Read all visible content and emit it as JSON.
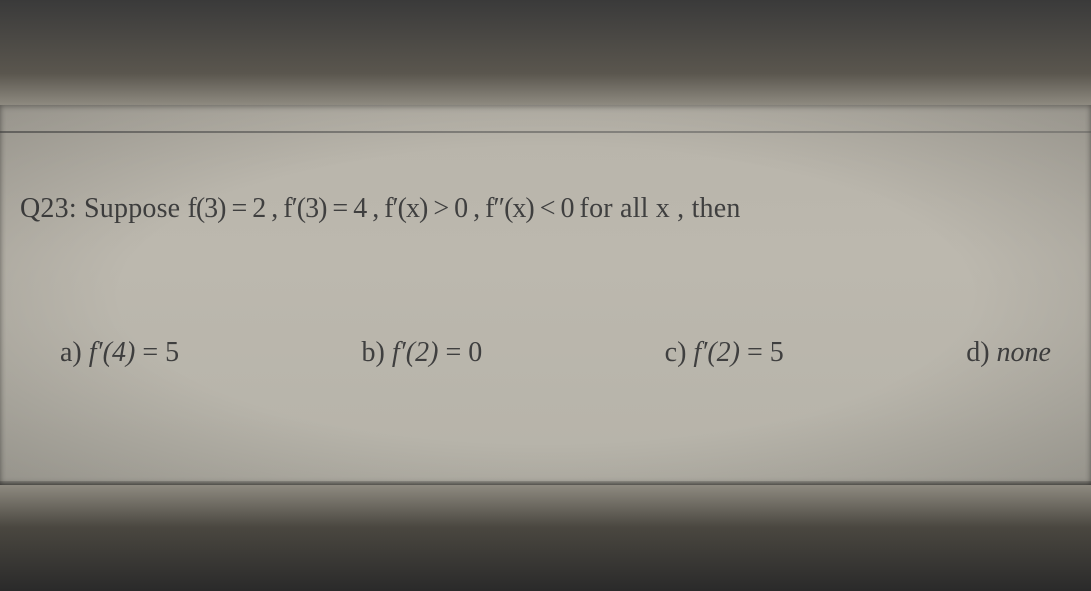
{
  "colors": {
    "page_bg": "#b8b4aa",
    "text": "#3f3f3f",
    "dark_strip": "#2a2a2a"
  },
  "typography": {
    "family": "Times New Roman",
    "question_fontsize_pt": 21,
    "option_fontsize_pt": 21
  },
  "question": {
    "number_label": "Q23:",
    "lead": "Suppose",
    "cond1_lhs": "f(3)",
    "eq": " = ",
    "cond1_rhs": "2",
    "sep": " , ",
    "cond2_lhs": "f′(3)",
    "cond2_rhs": "4",
    "cond3_lhs": "f′(x)",
    "gt": " > ",
    "cond3_rhs": "0",
    "cond4_lhs": "f″(x)",
    "lt": " < ",
    "cond4_rhs": "0",
    "tail": " for all x , then"
  },
  "options": {
    "a": {
      "label": "a)",
      "lhs": "f′(4)",
      "eq": " = ",
      "rhs": "5"
    },
    "b": {
      "label": "b)",
      "lhs": "f′(2)",
      "eq": " = ",
      "rhs": "0"
    },
    "c": {
      "label": "c)",
      "lhs": "f′(2)",
      "eq": " = ",
      "rhs": "5"
    },
    "d": {
      "label": "d)",
      "text": "none"
    }
  }
}
